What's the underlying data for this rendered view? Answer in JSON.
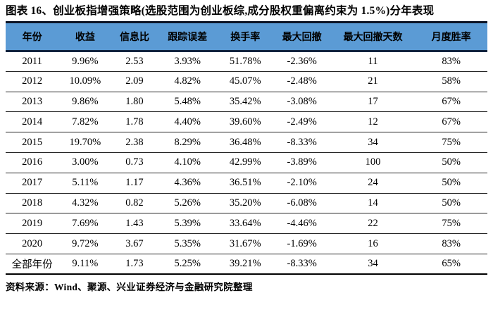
{
  "figure": {
    "title": "图表 16、创业板指增强策略(选股范围为创业板综,成分股权重偏离约束为 1.5%)分年表现",
    "source": "资料来源：Wind、聚源、兴业证券经济与金融研究院整理"
  },
  "colors": {
    "header_background": "#5B9BD5",
    "header_border": "#10233f",
    "row_divider": "#262626",
    "text": "#000000",
    "page_background": "#ffffff"
  },
  "chart_data": {
    "type": "table",
    "title": "创业板指增强策略分年表现",
    "columns": [
      "年份",
      "收益",
      "信息比",
      "跟踪误差",
      "换手率",
      "最大回撤",
      "最大回撤天数",
      "月度胜率"
    ],
    "rows": [
      [
        "2011",
        "9.96%",
        "2.53",
        "3.93%",
        "51.78%",
        "-2.36%",
        "11",
        "83%"
      ],
      [
        "2012",
        "10.09%",
        "2.09",
        "4.82%",
        "45.07%",
        "-2.48%",
        "21",
        "58%"
      ],
      [
        "2013",
        "9.86%",
        "1.80",
        "5.48%",
        "35.42%",
        "-3.08%",
        "17",
        "67%"
      ],
      [
        "2014",
        "7.82%",
        "1.78",
        "4.40%",
        "39.60%",
        "-2.49%",
        "12",
        "67%"
      ],
      [
        "2015",
        "19.70%",
        "2.38",
        "8.29%",
        "36.48%",
        "-8.33%",
        "34",
        "75%"
      ],
      [
        "2016",
        "3.00%",
        "0.73",
        "4.10%",
        "42.99%",
        "-3.89%",
        "100",
        "50%"
      ],
      [
        "2017",
        "5.11%",
        "1.17",
        "4.36%",
        "36.51%",
        "-2.10%",
        "24",
        "50%"
      ],
      [
        "2018",
        "4.32%",
        "0.82",
        "5.26%",
        "35.20%",
        "-6.08%",
        "14",
        "50%"
      ],
      [
        "2019",
        "7.69%",
        "1.43",
        "5.39%",
        "33.64%",
        "-4.46%",
        "22",
        "75%"
      ],
      [
        "2020",
        "9.72%",
        "3.67",
        "5.35%",
        "31.67%",
        "-1.69%",
        "16",
        "83%"
      ],
      [
        "全部年份",
        "9.11%",
        "1.73",
        "5.25%",
        "39.21%",
        "-8.33%",
        "34",
        "65%"
      ]
    ]
  }
}
